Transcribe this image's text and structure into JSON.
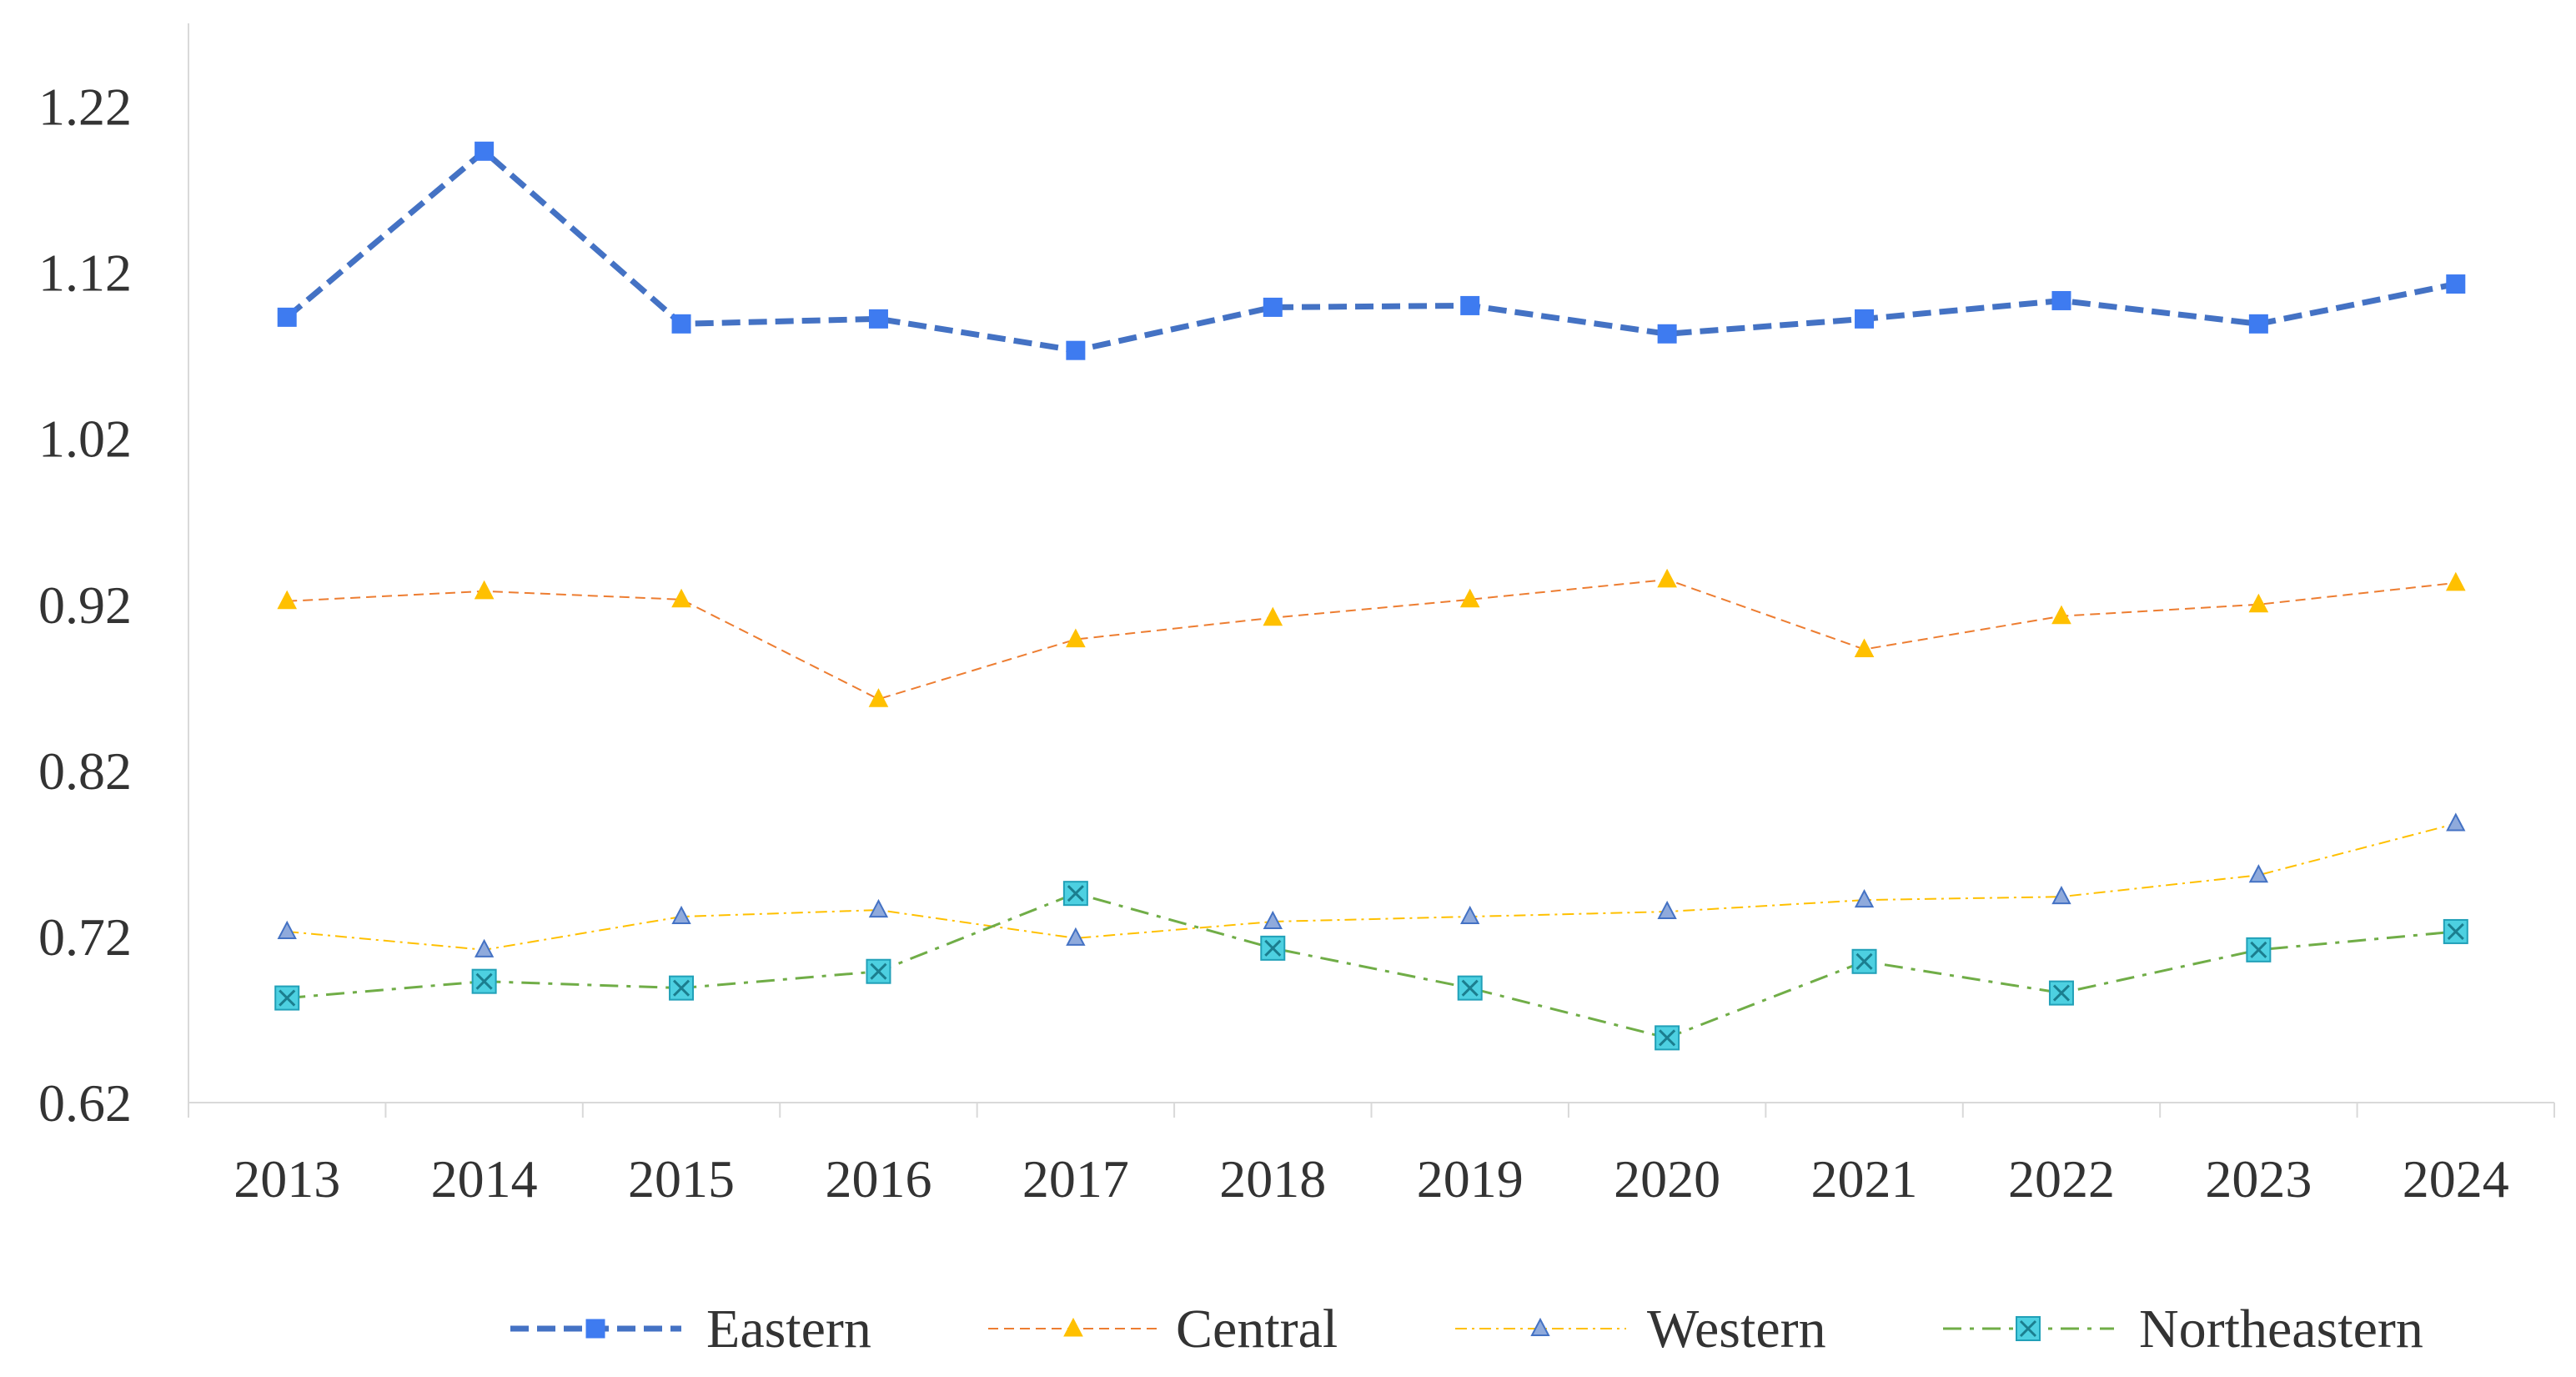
{
  "chart_data": {
    "type": "line",
    "title": "",
    "xlabel": "",
    "ylabel": "",
    "categories": [
      "2013",
      "2014",
      "2015",
      "2016",
      "2017",
      "2018",
      "2019",
      "2020",
      "2021",
      "2022",
      "2023",
      "2024"
    ],
    "ylim": [
      0.62,
      1.27
    ],
    "yticks": [
      0.62,
      0.72,
      0.82,
      0.92,
      1.02,
      1.12,
      1.22
    ],
    "ytick_labels": [
      "0.62",
      "0.72",
      "0.82",
      "0.92",
      "1.02",
      "1.12",
      "1.22"
    ],
    "grid": false,
    "legend_position": "bottom",
    "series": [
      {
        "name": "Eastern",
        "color": "#4472C4",
        "marker": "square",
        "line_style": "dashed-thick",
        "values": [
          1.093,
          1.193,
          1.089,
          1.092,
          1.073,
          1.099,
          1.1,
          1.083,
          1.092,
          1.103,
          1.089,
          1.113
        ]
      },
      {
        "name": "Central",
        "color": "#ED7D31",
        "marker_color": "#FFC000",
        "marker": "triangle",
        "line_style": "dashed-thin",
        "values": [
          0.922,
          0.928,
          0.923,
          0.863,
          0.899,
          0.912,
          0.923,
          0.935,
          0.893,
          0.913,
          0.92,
          0.933
        ]
      },
      {
        "name": "Western",
        "color": "#FFC000",
        "marker_color": "#8FAADC",
        "marker": "triangle-open",
        "line_style": "dash-dot-thin",
        "values": [
          0.723,
          0.712,
          0.732,
          0.736,
          0.719,
          0.729,
          0.732,
          0.735,
          0.742,
          0.744,
          0.757,
          0.788
        ]
      },
      {
        "name": "Northeastern",
        "color": "#70AD47",
        "marker_color": "#4DD0E1",
        "marker": "square-x",
        "line_style": "dash-dot",
        "values": [
          0.683,
          0.693,
          0.689,
          0.699,
          0.746,
          0.713,
          0.689,
          0.659,
          0.705,
          0.686,
          0.712,
          0.723
        ]
      }
    ]
  }
}
